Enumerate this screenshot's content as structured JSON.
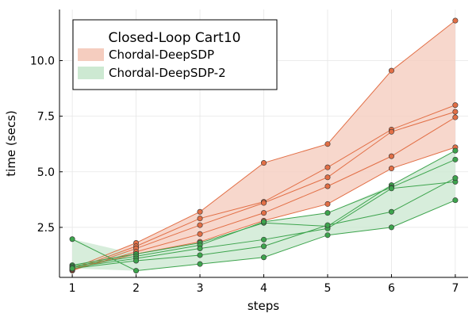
{
  "chart_data": {
    "type": "line",
    "title": "",
    "xlabel": "steps",
    "ylabel": "time (secs)",
    "xlim": [
      0.8,
      7.2
    ],
    "ylim": [
      0.25,
      12.3
    ],
    "xticks": [
      1,
      2,
      3,
      4,
      5,
      6,
      7
    ],
    "yticks": [
      2.5,
      5.0,
      7.5,
      10.0
    ],
    "ytick_labels": [
      "2.5",
      "5.0",
      "7.5",
      "10.0"
    ],
    "grid": true,
    "legend": {
      "title": "Closed-Loop Cart10",
      "placement": "top-left"
    },
    "series": [
      {
        "name": "Chordal-DeepSDP",
        "color": "#e26f46",
        "band_color": "#f5cdbf",
        "runs": [
          [
            0.65,
            1.8,
            3.2,
            5.4,
            6.25,
            9.55,
            11.8
          ],
          [
            0.6,
            1.65,
            2.9,
            3.65,
            5.2,
            6.9,
            8.0
          ],
          [
            0.55,
            1.55,
            2.6,
            3.6,
            4.75,
            6.8,
            7.7
          ],
          [
            0.58,
            1.4,
            2.2,
            3.15,
            4.35,
            5.7,
            7.45
          ],
          [
            0.62,
            1.3,
            1.85,
            2.8,
            3.55,
            5.15,
            6.1
          ]
        ]
      },
      {
        "name": "Chordal-DeepSDP-2",
        "color": "#3da44d",
        "band_color": "#cde9d2",
        "runs": [
          [
            1.97,
            0.55,
            0.85,
            1.15,
            2.15,
            2.5,
            3.72
          ],
          [
            0.8,
            1.3,
            1.8,
            2.7,
            2.55,
            4.4,
            5.95
          ],
          [
            0.75,
            1.2,
            1.7,
            2.75,
            3.15,
            4.3,
            5.55
          ],
          [
            0.7,
            1.1,
            1.55,
            1.95,
            2.45,
            4.25,
            4.55
          ],
          [
            0.65,
            1.0,
            1.25,
            1.65,
            2.6,
            3.2,
            4.72
          ]
        ]
      }
    ]
  }
}
